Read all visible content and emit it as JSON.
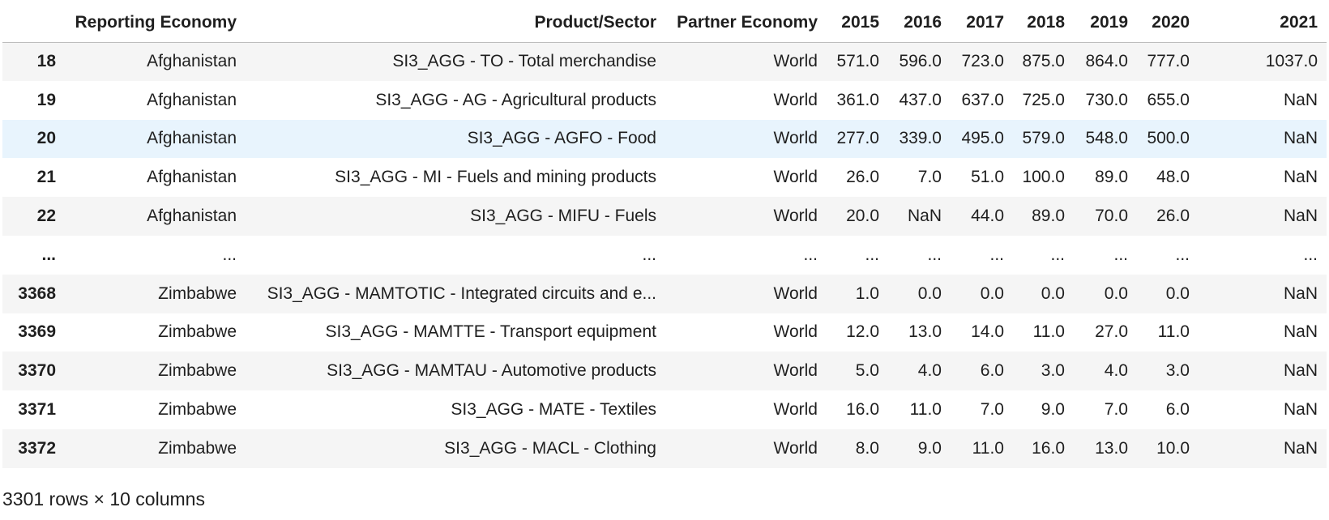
{
  "table": {
    "columns": [
      "",
      "Reporting Economy",
      "Product/Sector",
      "Partner Economy",
      "2015",
      "2016",
      "2017",
      "2018",
      "2019",
      "2020",
      "2021"
    ],
    "rows": [
      {
        "index": "18",
        "cells": [
          "Afghanistan",
          "SI3_AGG - TO - Total merchandise",
          "World",
          "571.0",
          "596.0",
          "723.0",
          "875.0",
          "864.0",
          "777.0",
          "1037.0"
        ]
      },
      {
        "index": "19",
        "cells": [
          "Afghanistan",
          "SI3_AGG - AG - Agricultural products",
          "World",
          "361.0",
          "437.0",
          "637.0",
          "725.0",
          "730.0",
          "655.0",
          "NaN"
        ]
      },
      {
        "index": "20",
        "cells": [
          "Afghanistan",
          "SI3_AGG - AGFO - Food",
          "World",
          "277.0",
          "339.0",
          "495.0",
          "579.0",
          "548.0",
          "500.0",
          "NaN"
        ]
      },
      {
        "index": "21",
        "cells": [
          "Afghanistan",
          "SI3_AGG - MI - Fuels and mining products",
          "World",
          "26.0",
          "7.0",
          "51.0",
          "100.0",
          "89.0",
          "48.0",
          "NaN"
        ]
      },
      {
        "index": "22",
        "cells": [
          "Afghanistan",
          "SI3_AGG - MIFU - Fuels",
          "World",
          "20.0",
          "NaN",
          "44.0",
          "89.0",
          "70.0",
          "26.0",
          "NaN"
        ]
      },
      {
        "index": "...",
        "cells": [
          "...",
          "...",
          "...",
          "...",
          "...",
          "...",
          "...",
          "...",
          "...",
          "..."
        ]
      },
      {
        "index": "3368",
        "cells": [
          "Zimbabwe",
          "SI3_AGG - MAMTOTIC - Integrated circuits and e...",
          "World",
          "1.0",
          "0.0",
          "0.0",
          "0.0",
          "0.0",
          "0.0",
          "NaN"
        ]
      },
      {
        "index": "3369",
        "cells": [
          "Zimbabwe",
          "SI3_AGG - MAMTTE - Transport equipment",
          "World",
          "12.0",
          "13.0",
          "14.0",
          "11.0",
          "27.0",
          "11.0",
          "NaN"
        ]
      },
      {
        "index": "3370",
        "cells": [
          "Zimbabwe",
          "SI3_AGG - MAMTAU - Automotive products",
          "World",
          "5.0",
          "4.0",
          "6.0",
          "3.0",
          "4.0",
          "3.0",
          "NaN"
        ]
      },
      {
        "index": "3371",
        "cells": [
          "Zimbabwe",
          "SI3_AGG - MATE - Textiles",
          "World",
          "16.0",
          "11.0",
          "7.0",
          "9.0",
          "7.0",
          "6.0",
          "NaN"
        ]
      },
      {
        "index": "3372",
        "cells": [
          "Zimbabwe",
          "SI3_AGG - MACL - Clothing",
          "World",
          "8.0",
          "9.0",
          "11.0",
          "16.0",
          "13.0",
          "10.0",
          "NaN"
        ]
      }
    ],
    "highlighted_row": 2
  },
  "footer": {
    "shape_text": "3301 rows × 10 columns"
  }
}
